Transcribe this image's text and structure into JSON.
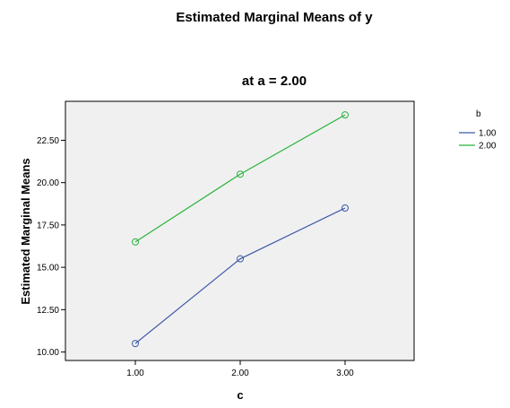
{
  "chart_data": {
    "type": "line",
    "title": "Estimated Marginal Means of y",
    "subtitle": "at a = 2.00",
    "xlabel": "c",
    "ylabel": "Estimated Marginal Means",
    "categories": [
      "1.00",
      "2.00",
      "3.00"
    ],
    "x_ticks": [
      "1.00",
      "2.00",
      "3.00"
    ],
    "y_ticks": [
      "10.00",
      "12.50",
      "15.00",
      "17.50",
      "20.00",
      "22.50"
    ],
    "ylim": [
      9.5,
      24.8
    ],
    "grid": false,
    "legend": {
      "title": "b",
      "placement": "right"
    },
    "series": [
      {
        "name": "1.00",
        "color": "#3c5aa8",
        "values": [
          10.5,
          15.5,
          18.5
        ]
      },
      {
        "name": "2.00",
        "color": "#28b43c",
        "values": [
          16.5,
          20.5,
          24.0
        ]
      }
    ]
  },
  "colors": {
    "plot_background": "#f0f0f0",
    "frame": "#000000"
  }
}
